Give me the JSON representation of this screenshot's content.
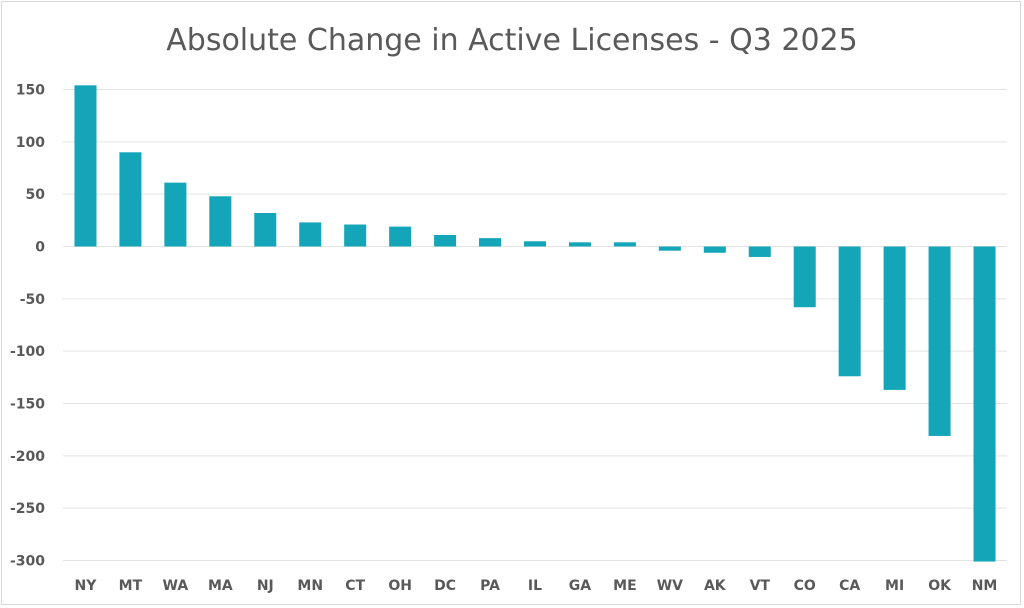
{
  "chart_data": {
    "type": "bar",
    "title": "Absolute Change in Active Licenses - Q3 2025",
    "xlabel": "",
    "ylabel": "",
    "categories": [
      "NY",
      "MT",
      "WA",
      "MA",
      "NJ",
      "MN",
      "CT",
      "OH",
      "DC",
      "PA",
      "IL",
      "GA",
      "ME",
      "WV",
      "AK",
      "VT",
      "CO",
      "CA",
      "MI",
      "OK",
      "NM"
    ],
    "values": [
      154,
      90,
      61,
      48,
      32,
      23,
      21,
      19,
      11,
      8,
      5,
      4,
      4,
      -4,
      -6,
      -10,
      -58,
      -124,
      -137,
      -181,
      -301
    ],
    "ylim": [
      -300,
      150
    ],
    "yticks": [
      150,
      100,
      50,
      0,
      -50,
      -100,
      -150,
      -200,
      -250,
      -300
    ],
    "grid": true,
    "legend": "none",
    "bar_color": "#14A6B8"
  }
}
